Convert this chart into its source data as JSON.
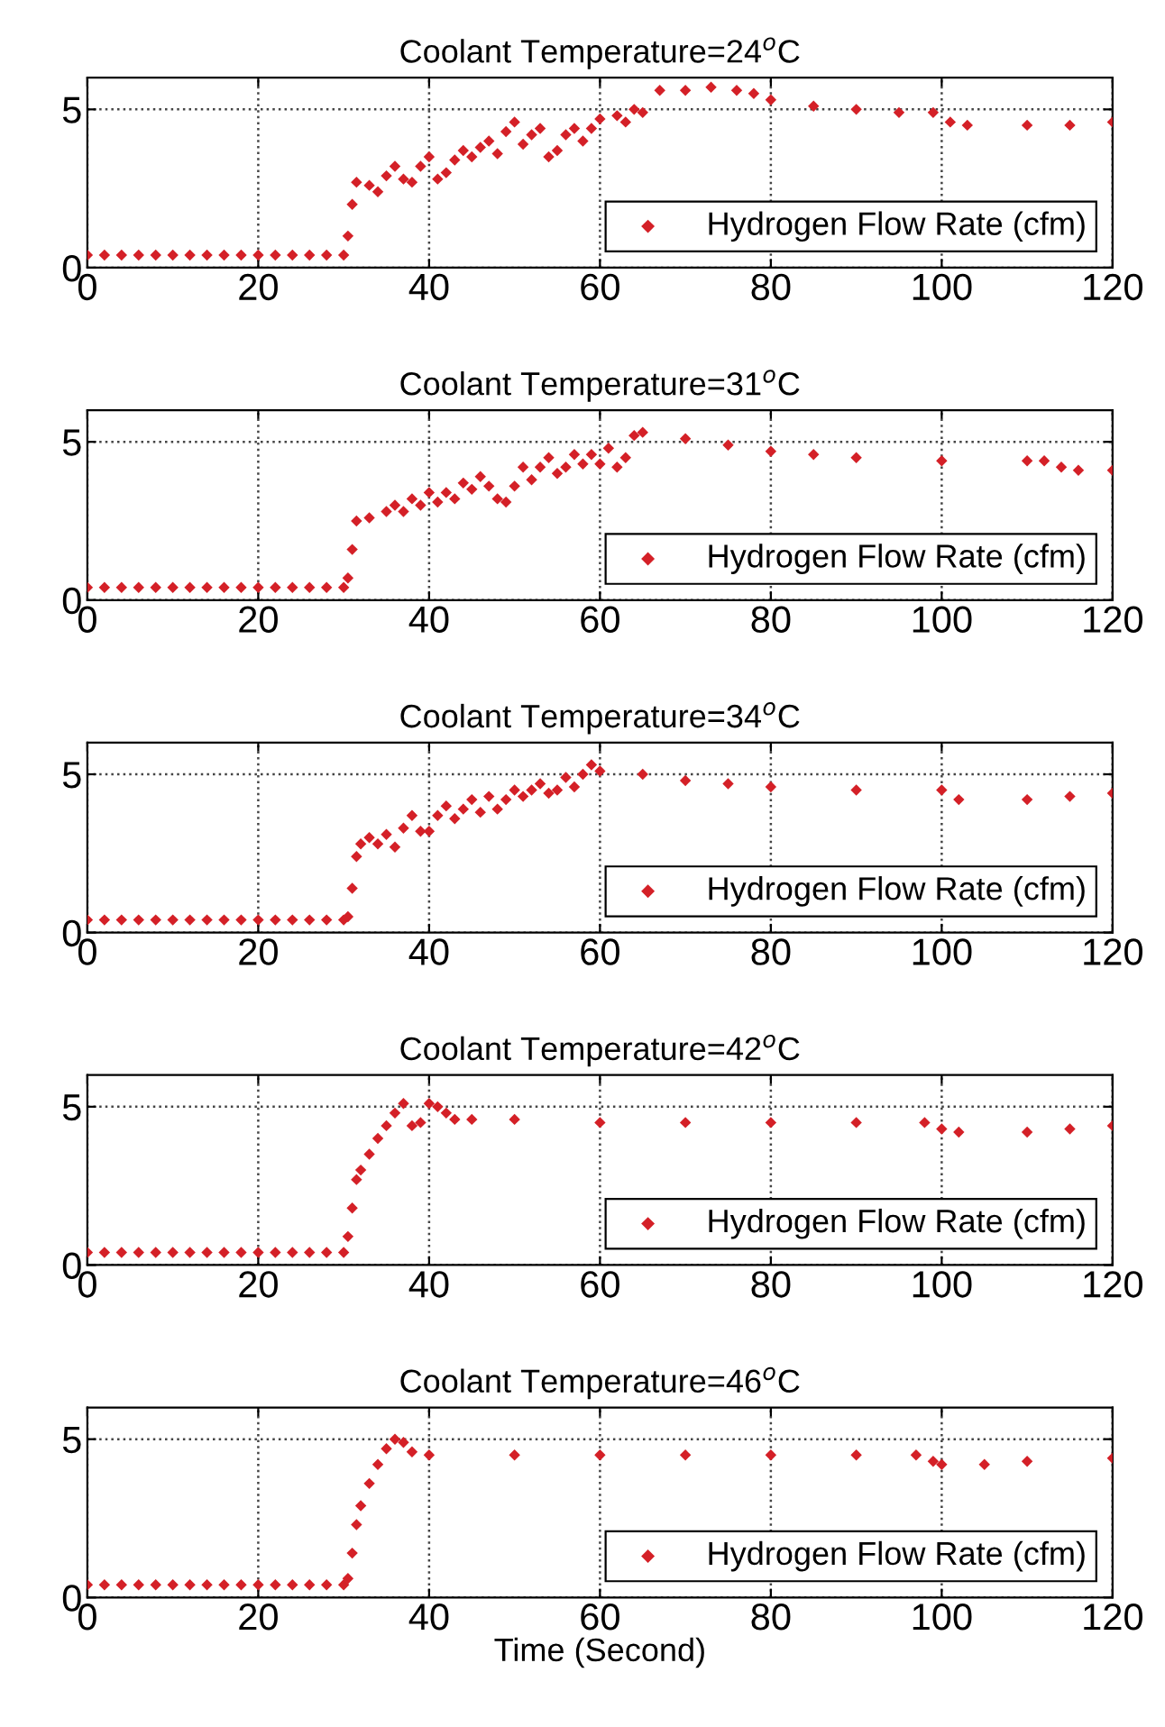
{
  "chart_data": [
    {
      "type": "scatter",
      "title": "Coolant Temperature=24$^{o}$C",
      "xlim": [
        0,
        120
      ],
      "xticks": [
        0,
        20,
        40,
        60,
        80,
        100,
        120
      ],
      "ylim": [
        0,
        6
      ],
      "yticks": [
        0,
        5
      ],
      "grid": true,
      "legend": "bottom right",
      "marker": "diamond",
      "series": [
        {
          "name": "Hydrogen Flow Rate (cfm)",
          "color": "#d42027",
          "x": [
            0,
            2,
            4,
            6,
            8,
            10,
            12,
            14,
            16,
            18,
            20,
            22,
            24,
            26,
            28,
            30,
            30.5,
            31,
            31.5,
            33,
            34,
            35,
            36,
            37,
            38,
            39,
            40,
            41,
            42,
            43,
            44,
            45,
            46,
            47,
            48,
            49,
            50,
            51,
            52,
            53,
            54,
            55,
            56,
            57,
            58,
            59,
            60,
            62,
            63,
            64,
            65,
            67,
            70,
            73,
            76,
            78,
            80,
            85,
            90,
            95,
            99,
            101,
            103,
            110,
            115,
            120
          ],
          "values": [
            0.4,
            0.4,
            0.4,
            0.4,
            0.4,
            0.4,
            0.4,
            0.4,
            0.4,
            0.4,
            0.4,
            0.4,
            0.4,
            0.4,
            0.4,
            0.4,
            1.0,
            2.0,
            2.7,
            2.6,
            2.4,
            2.9,
            3.2,
            2.8,
            2.7,
            3.2,
            3.5,
            2.8,
            3.0,
            3.4,
            3.7,
            3.5,
            3.8,
            4.0,
            3.6,
            4.3,
            4.6,
            3.9,
            4.2,
            4.4,
            3.5,
            3.7,
            4.2,
            4.4,
            4.0,
            4.4,
            4.7,
            4.8,
            4.6,
            5.0,
            4.9,
            5.6,
            5.6,
            5.7,
            5.6,
            5.5,
            5.3,
            5.1,
            5.0,
            4.9,
            4.9,
            4.6,
            4.5,
            4.5,
            4.5,
            4.6
          ]
        }
      ]
    },
    {
      "type": "scatter",
      "title": "Coolant Temperature=31$^{o}$C",
      "xlim": [
        0,
        120
      ],
      "xticks": [
        0,
        20,
        40,
        60,
        80,
        100,
        120
      ],
      "ylim": [
        0,
        6
      ],
      "yticks": [
        0,
        5
      ],
      "grid": true,
      "legend": "bottom right",
      "marker": "diamond",
      "series": [
        {
          "name": "Hydrogen Flow Rate (cfm)",
          "color": "#d42027",
          "x": [
            0,
            2,
            4,
            6,
            8,
            10,
            12,
            14,
            16,
            18,
            20,
            22,
            24,
            26,
            28,
            30,
            30.5,
            31,
            31.5,
            33,
            35,
            36,
            37,
            38,
            39,
            40,
            41,
            42,
            43,
            44,
            45,
            46,
            47,
            48,
            49,
            50,
            51,
            52,
            53,
            54,
            55,
            56,
            57,
            58,
            59,
            60,
            61,
            62,
            63,
            64,
            65,
            70,
            75,
            80,
            85,
            90,
            100,
            110,
            112,
            114,
            116,
            120
          ],
          "values": [
            0.4,
            0.4,
            0.4,
            0.4,
            0.4,
            0.4,
            0.4,
            0.4,
            0.4,
            0.4,
            0.4,
            0.4,
            0.4,
            0.4,
            0.4,
            0.4,
            0.7,
            1.6,
            2.5,
            2.6,
            2.8,
            3.0,
            2.8,
            3.2,
            3.0,
            3.4,
            3.1,
            3.4,
            3.2,
            3.7,
            3.5,
            3.9,
            3.6,
            3.2,
            3.1,
            3.6,
            4.2,
            3.8,
            4.2,
            4.5,
            4.0,
            4.2,
            4.6,
            4.3,
            4.6,
            4.3,
            4.8,
            4.2,
            4.5,
            5.2,
            5.3,
            5.1,
            4.9,
            4.7,
            4.6,
            4.5,
            4.4,
            4.4,
            4.4,
            4.2,
            4.1,
            4.1
          ]
        }
      ]
    },
    {
      "type": "scatter",
      "title": "Coolant Temperature=34$^{o}$C",
      "xlim": [
        0,
        120
      ],
      "xticks": [
        0,
        20,
        40,
        60,
        80,
        100,
        120
      ],
      "ylim": [
        0,
        6
      ],
      "yticks": [
        0,
        5
      ],
      "grid": true,
      "legend": "bottom right",
      "marker": "diamond",
      "series": [
        {
          "name": "Hydrogen Flow Rate (cfm)",
          "color": "#d42027",
          "x": [
            0,
            2,
            4,
            6,
            8,
            10,
            12,
            14,
            16,
            18,
            20,
            22,
            24,
            26,
            28,
            30,
            30.5,
            31,
            31.5,
            32,
            33,
            34,
            35,
            36,
            37,
            38,
            39,
            40,
            41,
            42,
            43,
            44,
            45,
            46,
            47,
            48,
            49,
            50,
            51,
            52,
            53,
            54,
            55,
            56,
            57,
            58,
            59,
            60,
            65,
            70,
            75,
            80,
            90,
            100,
            102,
            110,
            115,
            120
          ],
          "values": [
            0.4,
            0.4,
            0.4,
            0.4,
            0.4,
            0.4,
            0.4,
            0.4,
            0.4,
            0.4,
            0.4,
            0.4,
            0.4,
            0.4,
            0.4,
            0.4,
            0.5,
            1.4,
            2.4,
            2.8,
            3.0,
            2.8,
            3.1,
            2.7,
            3.3,
            3.7,
            3.2,
            3.2,
            3.7,
            4.0,
            3.6,
            3.9,
            4.2,
            3.8,
            4.3,
            3.9,
            4.2,
            4.5,
            4.3,
            4.5,
            4.7,
            4.4,
            4.5,
            4.9,
            4.6,
            5.0,
            5.3,
            5.1,
            5.0,
            4.8,
            4.7,
            4.6,
            4.5,
            4.5,
            4.2,
            4.2,
            4.3,
            4.4
          ]
        }
      ]
    },
    {
      "type": "scatter",
      "title": "Coolant Temperature=42$^{o}$C",
      "xlim": [
        0,
        120
      ],
      "xticks": [
        0,
        20,
        40,
        60,
        80,
        100,
        120
      ],
      "ylim": [
        0,
        6
      ],
      "yticks": [
        0,
        5
      ],
      "grid": true,
      "legend": "bottom right",
      "marker": "diamond",
      "series": [
        {
          "name": "Hydrogen Flow Rate (cfm)",
          "color": "#d42027",
          "x": [
            0,
            2,
            4,
            6,
            8,
            10,
            12,
            14,
            16,
            18,
            20,
            22,
            24,
            26,
            28,
            30,
            30.5,
            31,
            31.5,
            32,
            33,
            34,
            35,
            36,
            37,
            38,
            39,
            40,
            41,
            42,
            43,
            45,
            50,
            60,
            70,
            80,
            90,
            98,
            100,
            102,
            110,
            115,
            120
          ],
          "values": [
            0.4,
            0.4,
            0.4,
            0.4,
            0.4,
            0.4,
            0.4,
            0.4,
            0.4,
            0.4,
            0.4,
            0.4,
            0.4,
            0.4,
            0.4,
            0.4,
            0.9,
            1.8,
            2.7,
            3.0,
            3.5,
            4.0,
            4.4,
            4.8,
            5.1,
            4.4,
            4.5,
            5.1,
            5.0,
            4.8,
            4.6,
            4.6,
            4.6,
            4.5,
            4.5,
            4.5,
            4.5,
            4.5,
            4.3,
            4.2,
            4.2,
            4.3,
            4.4
          ]
        }
      ]
    },
    {
      "type": "scatter",
      "title": "Coolant Temperature=46$^{o}$C",
      "xlabel": "Time (Second)",
      "xlim": [
        0,
        120
      ],
      "xticks": [
        0,
        20,
        40,
        60,
        80,
        100,
        120
      ],
      "ylim": [
        0,
        6
      ],
      "yticks": [
        0,
        5
      ],
      "grid": true,
      "legend": "bottom right",
      "marker": "diamond",
      "series": [
        {
          "name": "Hydrogen Flow Rate (cfm)",
          "color": "#d42027",
          "x": [
            0,
            2,
            4,
            6,
            8,
            10,
            12,
            14,
            16,
            18,
            20,
            22,
            24,
            26,
            28,
            30,
            30.5,
            31,
            31.5,
            32,
            33,
            34,
            35,
            36,
            37,
            38,
            40,
            50,
            60,
            70,
            80,
            90,
            97,
            99,
            100,
            105,
            110,
            120
          ],
          "values": [
            0.4,
            0.4,
            0.4,
            0.4,
            0.4,
            0.4,
            0.4,
            0.4,
            0.4,
            0.4,
            0.4,
            0.4,
            0.4,
            0.4,
            0.4,
            0.4,
            0.6,
            1.4,
            2.3,
            2.9,
            3.6,
            4.2,
            4.7,
            5.0,
            4.9,
            4.6,
            4.5,
            4.5,
            4.5,
            4.5,
            4.5,
            4.5,
            4.5,
            4.3,
            4.2,
            4.2,
            4.3,
            4.4
          ]
        }
      ]
    }
  ]
}
